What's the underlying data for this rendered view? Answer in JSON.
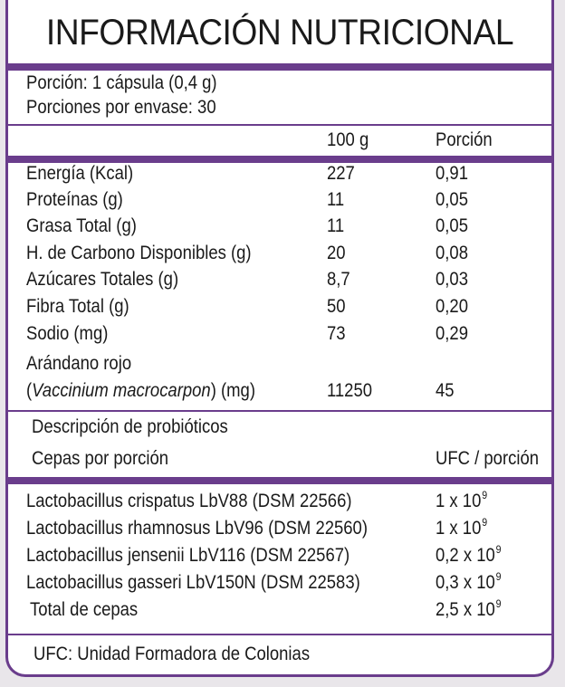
{
  "title": "INFORMACIÓN NUTRICIONAL",
  "serving": {
    "portion": "Porción: 1 cápsula (0,4 g)",
    "per_container_label": "Porciones por envase:",
    "per_container_value": "30"
  },
  "columns": {
    "per100": "100 g",
    "per_portion": "Porción"
  },
  "nutrients": [
    {
      "name": "Energía (Kcal)",
      "per100": "227",
      "portion": "0,91"
    },
    {
      "name": "Proteínas (g)",
      "per100": "11",
      "portion": "0,05"
    },
    {
      "name": "Grasa Total (g)",
      "per100": "11",
      "portion": "0,05"
    },
    {
      "name": "H. de Carbono Disponibles (g)",
      "per100": "20",
      "portion": "0,08"
    },
    {
      "name": "Azúcares Totales (g)",
      "per100": "8,7",
      "portion": "0,03"
    },
    {
      "name": "Fibra Total (g)",
      "per100": "50",
      "portion": "0,20"
    },
    {
      "name": "Sodio (mg)",
      "per100": "73",
      "portion": "0,29"
    }
  ],
  "cranberry": {
    "line1": "Arándano rojo",
    "open": "(",
    "species": "Vaccinium macrocarpon",
    "close": ") (mg)",
    "per100": "11250",
    "portion": "45"
  },
  "probiotics": {
    "heading": "Descripción de probióticos",
    "strains_label": "Cepas por porción",
    "ufc_label": "UFC / porción",
    "strains": [
      {
        "name": "Lactobacillus crispatus LbV88 (DSM 22566)",
        "coef": "1 x 10",
        "exp": "9"
      },
      {
        "name": "Lactobacillus rhamnosus LbV96 (DSM 22560)",
        "coef": "1 x 10",
        "exp": "9"
      },
      {
        "name": "Lactobacillus jensenii LbV116 (DSM 22567)",
        "coef": "0,2 x 10",
        "exp": "9"
      },
      {
        "name": "Lactobacillus gasseri LbV150N (DSM 22583)",
        "coef": "0,3 x 10",
        "exp": "9"
      }
    ],
    "total": {
      "name": "Total de cepas",
      "coef": "2,5 x 10",
      "exp": "9"
    }
  },
  "footnote": "UFC: Unidad Formadora de Colonias",
  "colors": {
    "border": "#6a3d8c"
  }
}
